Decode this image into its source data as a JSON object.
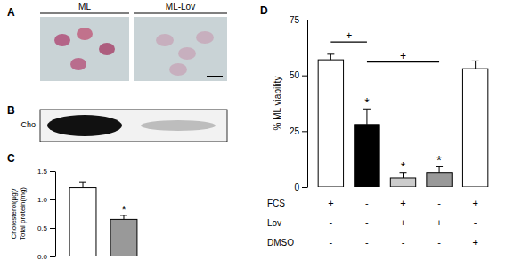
{
  "panels": {
    "A": {
      "label": "A",
      "columns": [
        "ML",
        "ML-Lov"
      ]
    },
    "B": {
      "label": "B",
      "row_label": "Cho"
    }
  },
  "chart_data": [
    {
      "type": "bar",
      "panel_label": "C",
      "y_label": [
        "Cholesterol(µg)/",
        "Total protein(mg)"
      ],
      "categories": [
        null,
        null
      ],
      "values": [
        1.21,
        0.65
      ],
      "errors": [
        0.1,
        0.07
      ],
      "colors": [
        "#ffffff",
        "#999999"
      ],
      "ylim": [
        0,
        1.5
      ],
      "yticks": [
        {
          "value": 0,
          "label": "0.0"
        },
        {
          "value": 0.5,
          "label": "0.5"
        },
        {
          "value": 1,
          "label": "1.0"
        },
        {
          "value": 1.5,
          "label": "1.5"
        }
      ],
      "annotations": [
        {
          "text": "*",
          "index": 1
        }
      ]
    },
    {
      "type": "bar",
      "panel_label": "D",
      "y_label": "% ML viability",
      "categories": [
        null,
        null,
        null,
        null,
        null
      ],
      "values": [
        57,
        28,
        4,
        6.5,
        53
      ],
      "errors": [
        2.5,
        7,
        2.5,
        2.5,
        3.5
      ],
      "colors": [
        "#ffffff",
        "#000000",
        "#cccccc",
        "#999999",
        "#ffffff"
      ],
      "ylim": [
        0,
        75
      ],
      "yticks": [
        0,
        25,
        50,
        75
      ],
      "annotations": [
        {
          "text": "*",
          "index": 1
        },
        {
          "text": "*",
          "index": 2
        },
        {
          "text": "*",
          "index": 3
        }
      ],
      "brackets": [
        {
          "from": 0,
          "to": 1,
          "y": 65,
          "text": "+"
        },
        {
          "from": 1,
          "to": 3,
          "y": 56,
          "text": "+"
        }
      ],
      "conditions": [
        {
          "label": "FCS",
          "values": [
            "+",
            "-",
            "+",
            "-",
            "+"
          ]
        },
        {
          "label": "Lov",
          "values": [
            "-",
            "-",
            "+",
            "+",
            "-"
          ]
        },
        {
          "label": "DMSO",
          "values": [
            "-",
            "-",
            "-",
            "-",
            "+"
          ]
        }
      ]
    }
  ]
}
